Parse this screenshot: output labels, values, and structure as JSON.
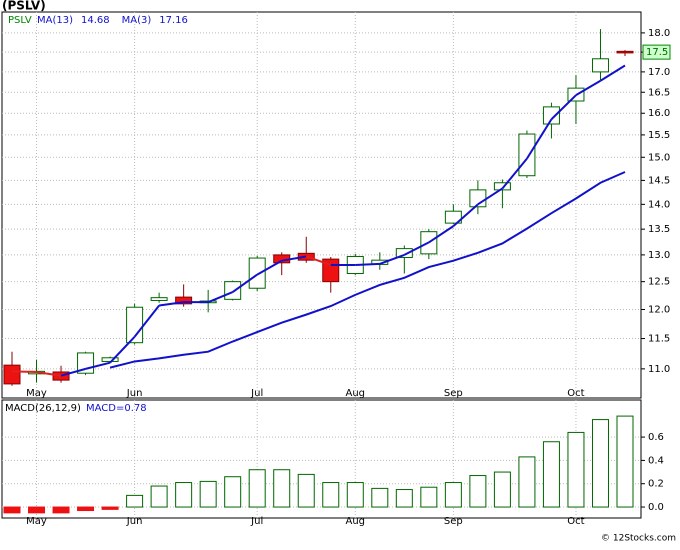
{
  "chart_data": [
    {
      "type": "candlestick",
      "title": "(PSLV)",
      "symbol": "PSLV",
      "categories": [
        null,
        "May",
        null,
        null,
        null,
        "Jun",
        null,
        null,
        null,
        null,
        "Jul",
        null,
        null,
        null,
        "Aug",
        null,
        null,
        null,
        "Sep",
        null,
        null,
        null,
        null,
        "Oct",
        null,
        null
      ],
      "open": [
        11.06,
        10.92,
        10.95,
        10.93,
        11.12,
        11.43,
        12.16,
        12.22,
        12.12,
        12.18,
        12.38,
        13.0,
        13.03,
        12.92,
        12.65,
        12.82,
        12.95,
        13.02,
        13.62,
        13.95,
        14.3,
        14.6,
        15.75,
        16.29,
        17.0,
        17.52
      ],
      "high": [
        11.28,
        11.15,
        11.05,
        11.28,
        11.2,
        12.1,
        12.3,
        12.45,
        12.35,
        12.52,
        12.98,
        13.05,
        13.35,
        12.96,
        13.02,
        13.05,
        13.18,
        13.5,
        14.0,
        14.5,
        14.52,
        15.6,
        16.25,
        16.92,
        18.1,
        17.55
      ],
      "low": [
        10.73,
        10.78,
        10.78,
        10.9,
        11.1,
        11.4,
        12.12,
        12.05,
        11.95,
        12.16,
        12.33,
        12.62,
        12.85,
        12.3,
        12.62,
        12.72,
        12.65,
        12.92,
        13.6,
        13.8,
        13.92,
        14.55,
        15.42,
        15.75,
        16.8,
        17.4
      ],
      "close": [
        10.76,
        10.96,
        10.82,
        11.26,
        11.18,
        12.04,
        12.21,
        12.1,
        12.15,
        12.5,
        12.94,
        12.85,
        12.9,
        12.5,
        12.97,
        12.9,
        13.12,
        13.45,
        13.86,
        14.3,
        14.45,
        15.52,
        16.15,
        16.6,
        17.33,
        17.48
      ],
      "up_color": "#ffffff",
      "up_edge": "#006600",
      "down_color": "#ee1111",
      "series": [
        {
          "name": "MA(13)",
          "color": "#1111cc",
          "values": [
            null,
            null,
            null,
            null,
            11.02,
            11.12,
            11.17,
            11.23,
            11.28,
            11.45,
            11.61,
            11.77,
            11.91,
            12.06,
            12.26,
            12.44,
            12.57,
            12.77,
            12.89,
            13.04,
            13.22,
            13.51,
            13.82,
            14.12,
            14.45,
            14.68
          ]
        },
        {
          "name": "MA(3)",
          "color": "#1111cc",
          "down_color": "#dd2222",
          "values": [
            10.96,
            10.95,
            10.89,
            11.0,
            11.1,
            11.53,
            12.07,
            12.13,
            12.13,
            12.31,
            12.63,
            12.89,
            12.97,
            12.81,
            12.81,
            12.83,
            13.0,
            13.24,
            13.56,
            14.0,
            14.33,
            14.97,
            15.86,
            16.43,
            16.78,
            17.16
          ]
        }
      ],
      "last_price": 17.5,
      "log_scale": true,
      "grid": true,
      "ylim": [
        10.54,
        18.56
      ],
      "yticks": [
        {
          "value": 11,
          "label": "11.0"
        },
        11.5,
        {
          "value": 12,
          "label": "12.0"
        },
        12.5,
        {
          "value": 13,
          "label": "13.0"
        },
        13.5,
        {
          "value": 14,
          "label": "14.0"
        },
        14.5,
        {
          "value": 15,
          "label": "15.0"
        },
        15.5,
        {
          "value": 16,
          "label": "16.0"
        },
        16.5,
        {
          "value": 17,
          "label": "17.0"
        },
        17.5,
        {
          "value": 18,
          "label": "18.0"
        }
      ]
    },
    {
      "type": "bar",
      "title": "MACD(26,12,9)",
      "legend_label": "MACD=0.78",
      "categories": [
        null,
        "May",
        null,
        null,
        null,
        "Jun",
        null,
        null,
        null,
        null,
        "Jul",
        null,
        null,
        null,
        "Aug",
        null,
        null,
        null,
        "Sep",
        null,
        null,
        null,
        null,
        "Oct",
        null,
        null
      ],
      "values": [
        -0.05,
        -0.05,
        -0.05,
        -0.03,
        -0.02,
        0.1,
        0.18,
        0.21,
        0.22,
        0.26,
        0.32,
        0.32,
        0.28,
        0.21,
        0.21,
        0.16,
        0.15,
        0.17,
        0.21,
        0.27,
        0.3,
        0.43,
        0.56,
        0.64,
        0.75,
        0.78
      ],
      "color": "#ffffff",
      "edge_color": "#006600",
      "negative_color": "#ee1111",
      "grid": true,
      "ylim": [
        -0.094,
        0.918
      ],
      "yticks": [
        {
          "value": 0,
          "label": "0.0"
        },
        0.2,
        0.4,
        0.6
      ]
    },
    {
      "type": "footer",
      "text": "© 12Stocks.com"
    }
  ]
}
